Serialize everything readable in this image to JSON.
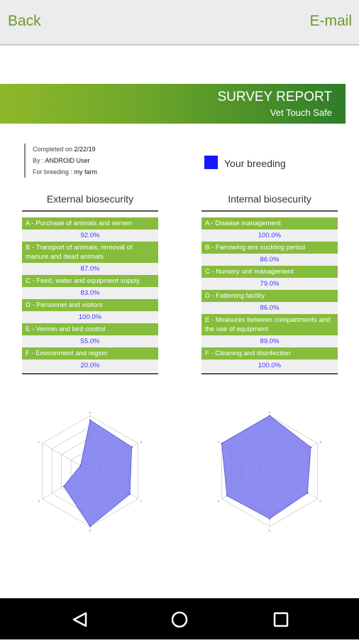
{
  "topbar": {
    "back_label": "Back",
    "email_label": "E-mail"
  },
  "banner": {
    "title": "SURVEY REPORT",
    "subtitle": "Vet Touch Safe"
  },
  "meta": {
    "completed_prefix": "Completed on ",
    "completed_value": "2/22/19",
    "by_prefix": "By : ",
    "by_value": "ANDROID User",
    "breeding_prefix": "For breeding : ",
    "breeding_value": "my farm"
  },
  "legend": {
    "label": "Your breeding"
  },
  "external": {
    "title": "External biosecurity",
    "items": [
      {
        "name": "A - Purchase of animals and semen",
        "value": "92.0%"
      },
      {
        "name": "B - Transport of animals, removal of manure and dead animals",
        "value": "87.0%"
      },
      {
        "name": "C - Feed, water and equipment supply",
        "value": "83.0%"
      },
      {
        "name": "D - Personnel and visitors",
        "value": "100.0%"
      },
      {
        "name": "E - Vermin and bird control",
        "value": "55.0%"
      },
      {
        "name": "F - Environment and region",
        "value": "20.0%"
      }
    ]
  },
  "internal": {
    "title": "Internal biosecurity",
    "items": [
      {
        "name": "A - Disease management",
        "value": "100.0%"
      },
      {
        "name": "B - Farrowing ans suckling period",
        "value": "86.0%"
      },
      {
        "name": "C - Nursery unit management",
        "value": "79.0%"
      },
      {
        "name": "D - Fattening facility",
        "value": "86.0%"
      },
      {
        "name": "E - Measures between compartments and the use of equipment",
        "value": "89.0%"
      },
      {
        "name": "F - Cleaning and disinfection",
        "value": "100.0%"
      }
    ]
  },
  "chart_data": [
    {
      "type": "radar",
      "axes": [
        "A",
        "B",
        "C",
        "D",
        "E",
        "F"
      ],
      "values": [
        92,
        87,
        83,
        100,
        55,
        20
      ],
      "rlim": [
        0,
        100
      ],
      "fill": "#7878ee"
    },
    {
      "type": "radar",
      "axes": [
        "A",
        "B",
        "C",
        "D",
        "E",
        "F"
      ],
      "values": [
        100,
        86,
        79,
        86,
        89,
        100
      ],
      "rlim": [
        0,
        100
      ],
      "fill": "#7878ee"
    }
  ]
}
